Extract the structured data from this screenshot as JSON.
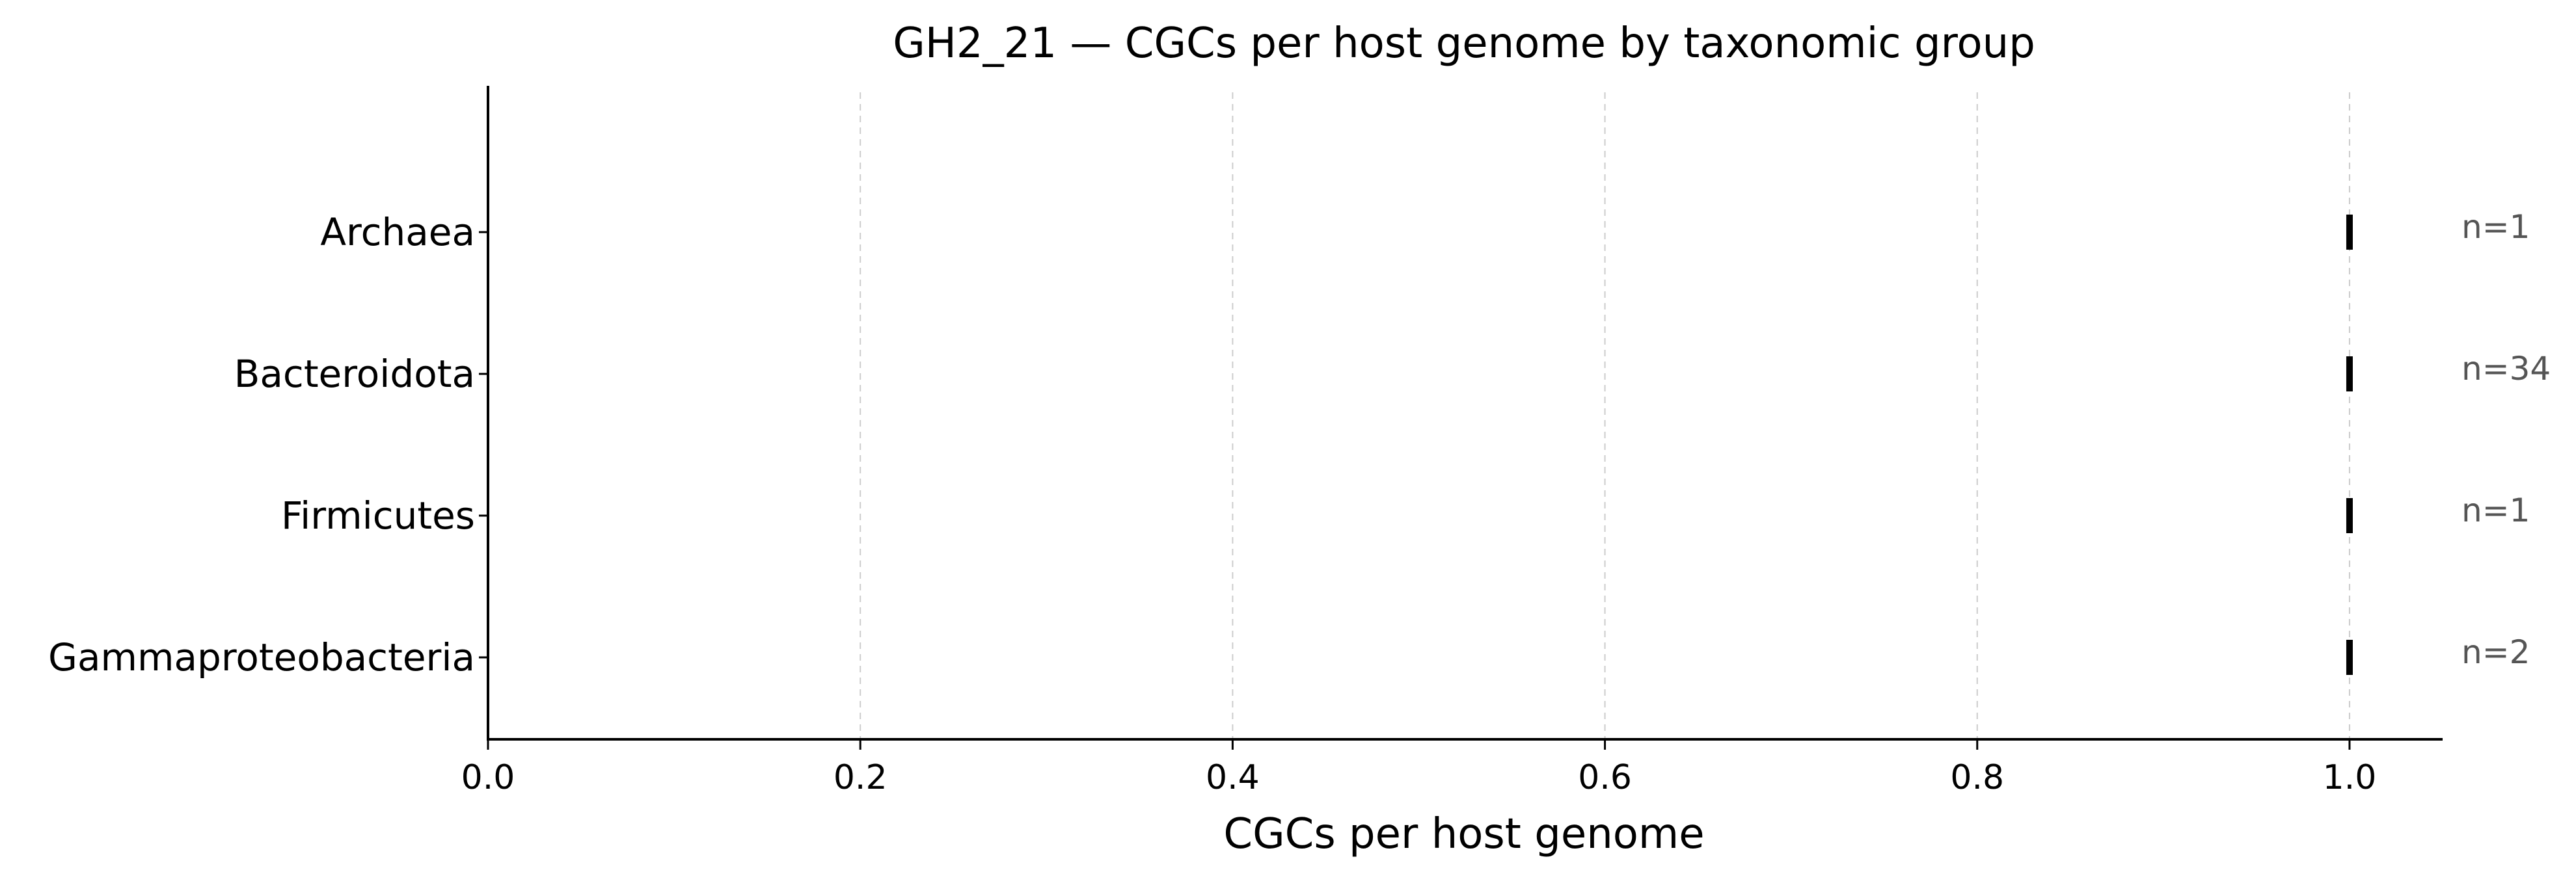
{
  "chart_data": {
    "type": "scatter",
    "title": "GH2_21 — CGCs per host genome by taxonomic group",
    "xlabel": "CGCs per host genome",
    "ylabel": "",
    "xlim": [
      0,
      1.05
    ],
    "xticks": [
      0.0,
      0.2,
      0.4,
      0.6,
      0.8,
      1.0
    ],
    "xtick_labels": [
      "0.0",
      "0.2",
      "0.4",
      "0.6",
      "0.8",
      "1.0"
    ],
    "grid": "vertical dashed",
    "marker": "vertical tick",
    "categories": [
      "Archaea",
      "Bacteroidota",
      "Firmicutes",
      "Gammaproteobacteria"
    ],
    "values": [
      1.0,
      1.0,
      1.0,
      1.0
    ],
    "counts": [
      "n=1",
      "n=34",
      "n=1",
      "n=2"
    ],
    "colors": {
      "marker": "#000000",
      "count_text": "#555555",
      "grid": "#cccccc"
    }
  }
}
